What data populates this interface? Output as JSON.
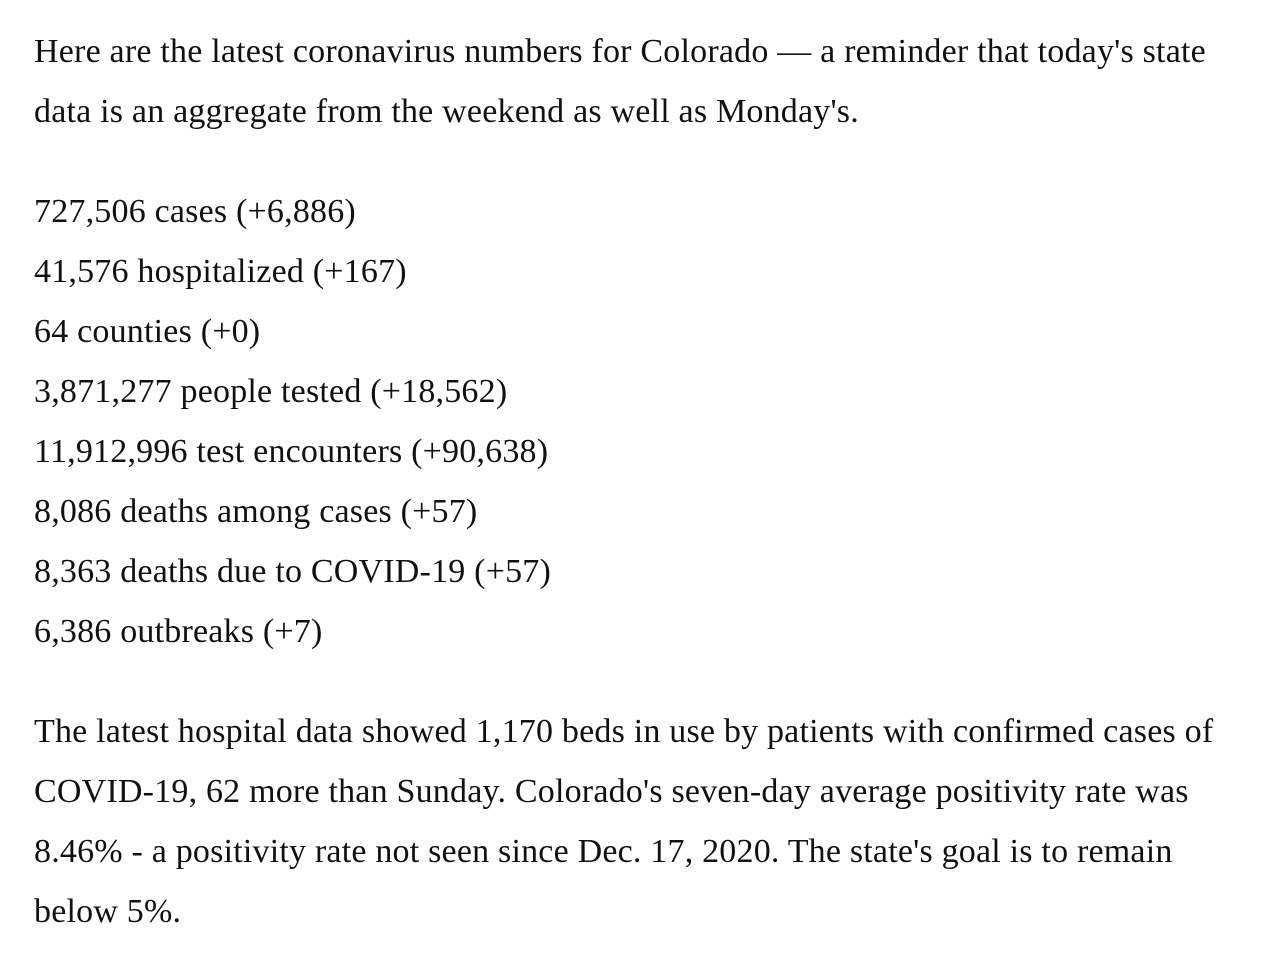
{
  "article": {
    "background_color": "#ffffff",
    "text_color": "#111111",
    "intro": "Here are the latest coronavirus numbers for Colorado — a reminder that today's state data is an aggregate from the weekend as well as Monday's.",
    "stats": [
      "727,506 cases (+6,886)",
      "41,576 hospitalized (+167)",
      "64 counties (+0)",
      "3,871,277 people tested (+18,562)",
      "11,912,996 test encounters (+90,638)",
      "8,086 deaths among cases (+57)",
      "8,363 deaths due to COVID-19 (+57)",
      "6,386 outbreaks (+7)"
    ],
    "closing": "The latest hospital data showed 1,170 beds in use by patients with confirmed cases of COVID-19, 62 more than Sunday. Colorado's seven-day average positivity rate was 8.46% - a positivity rate not seen since Dec. 17, 2020. The state's goal is to remain below 5%."
  }
}
